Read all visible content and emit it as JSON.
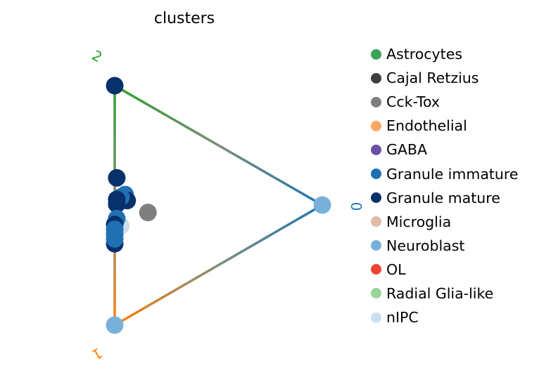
{
  "chart_data": {
    "type": "scatter",
    "title": "clusters",
    "vertices": [
      {
        "label": "0",
        "color": "#1f77b4"
      },
      {
        "label": "1",
        "color": "#ff7f0e"
      },
      {
        "label": "2",
        "color": "#2ca02c"
      }
    ],
    "edge_color_mid": "#7f8f7a",
    "legend": [
      {
        "name": "Astrocytes",
        "color": "#3ba458"
      },
      {
        "name": "Cajal Retzius",
        "color": "#404040"
      },
      {
        "name": "Cck-Tox",
        "color": "#7f7f7f"
      },
      {
        "name": "Endothelial",
        "color": "#fda762"
      },
      {
        "name": "GABA",
        "color": "#6a51a3"
      },
      {
        "name": "Granule immature",
        "color": "#2070b4"
      },
      {
        "name": "Granule mature",
        "color": "#08306b"
      },
      {
        "name": "Microglia",
        "color": "#e0bba9"
      },
      {
        "name": "Neuroblast",
        "color": "#77b1da"
      },
      {
        "name": "OL",
        "color": "#f14432"
      },
      {
        "name": "Radial Glia-like",
        "color": "#99d594"
      },
      {
        "name": "nIPC",
        "color": "#ccdff1"
      }
    ],
    "points": [
      {
        "cluster": "Neuroblast",
        "p0": 1.0,
        "p1": 0.0,
        "p2": 0.0
      },
      {
        "cluster": "Neuroblast",
        "p0": 0.0,
        "p1": 1.0,
        "p2": 0.0
      },
      {
        "cluster": "Granule mature",
        "p0": 0.0,
        "p1": 0.0,
        "p2": 1.0
      },
      {
        "cluster": "Cck-Tox",
        "p0": 0.16,
        "p1": 0.45,
        "p2": 0.39
      },
      {
        "cluster": "Granule mature",
        "p0": 0.01,
        "p1": 0.38,
        "p2": 0.61
      },
      {
        "cluster": "Granule immature",
        "p0": 0.05,
        "p1": 0.43,
        "p2": 0.52
      },
      {
        "cluster": "Granule mature",
        "p0": 0.06,
        "p1": 0.45,
        "p2": 0.49
      },
      {
        "cluster": "Granule immature",
        "p0": 0.03,
        "p1": 0.45,
        "p2": 0.52
      },
      {
        "cluster": "Granule mature",
        "p0": 0.01,
        "p1": 0.47,
        "p2": 0.52
      },
      {
        "cluster": "Granule mature",
        "p0": 0.01,
        "p1": 0.49,
        "p2": 0.5
      },
      {
        "cluster": "nIPC",
        "p0": 0.03,
        "p1": 0.57,
        "p2": 0.4
      },
      {
        "cluster": "Granule immature",
        "p0": 0.01,
        "p1": 0.55,
        "p2": 0.44
      },
      {
        "cluster": "Granule mature",
        "p0": 0.0,
        "p1": 0.58,
        "p2": 0.42
      },
      {
        "cluster": "Granule immature",
        "p0": 0.0,
        "p1": 0.6,
        "p2": 0.4
      },
      {
        "cluster": "Granule immature",
        "p0": 0.0,
        "p1": 0.62,
        "p2": 0.38
      },
      {
        "cluster": "Granule mature",
        "p0": 0.0,
        "p1": 0.66,
        "p2": 0.34
      },
      {
        "cluster": "Granule immature",
        "p0": 0.0,
        "p1": 0.64,
        "p2": 0.36
      }
    ]
  }
}
